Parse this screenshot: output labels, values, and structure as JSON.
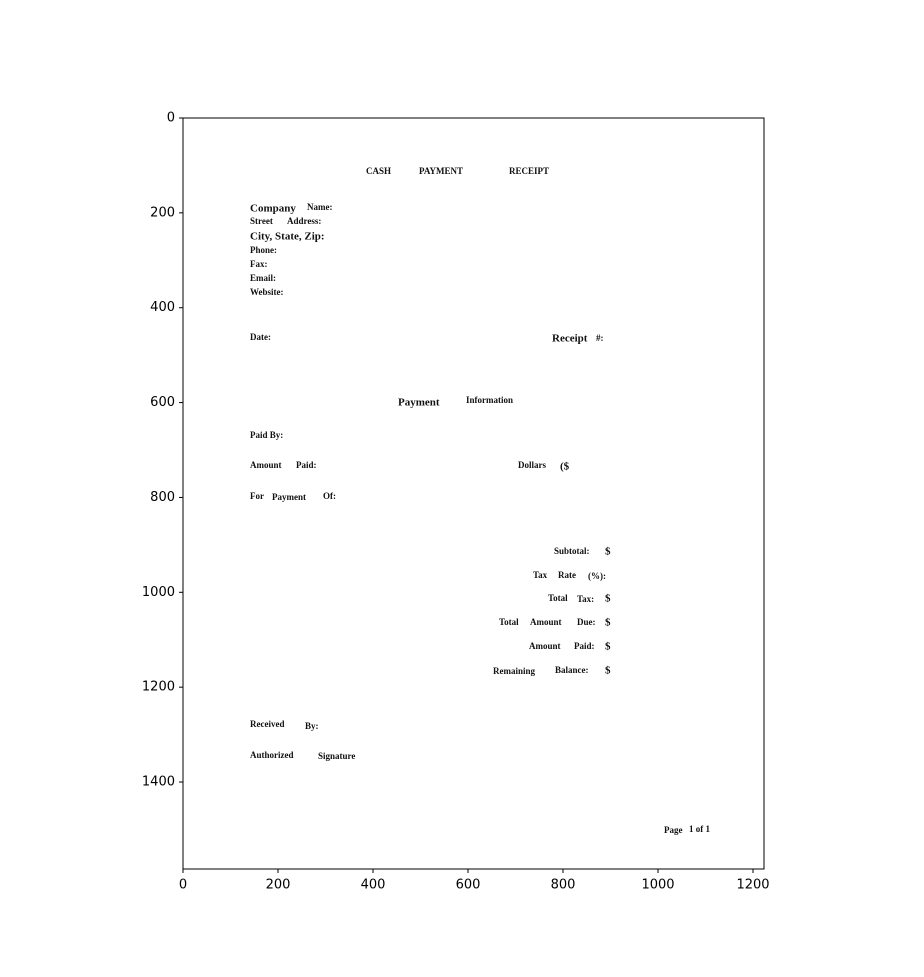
{
  "axes": {
    "xticks": [
      0,
      200,
      400,
      600,
      800,
      1000,
      1200
    ],
    "yticks": [
      0,
      200,
      400,
      600,
      800,
      1000,
      1200,
      1400
    ]
  },
  "document": {
    "words": [
      "CASH",
      "PAYMENT",
      "RECEIPT",
      "Company",
      "Name:",
      "Street",
      "Address:",
      "City, State, Zip:",
      "Phone:",
      "Fax:",
      "Email:",
      "Website:",
      "Date:",
      "Receipt",
      "#:",
      "Payment",
      "Information",
      "Paid By:",
      "Amount",
      "Paid:",
      "Dollars",
      "($",
      "For",
      "Payment",
      "Of:",
      "Subtotal:",
      "$",
      "Tax",
      "Rate",
      "(%):",
      "Total",
      "Tax:",
      "$",
      "Total",
      "Amount",
      "Due:",
      "$",
      "Amount",
      "Paid:",
      "$",
      "Remaining",
      "Balance:",
      "$",
      "Received",
      "By:",
      "Authorized",
      "Signature",
      "Page",
      "1 of 1"
    ]
  }
}
